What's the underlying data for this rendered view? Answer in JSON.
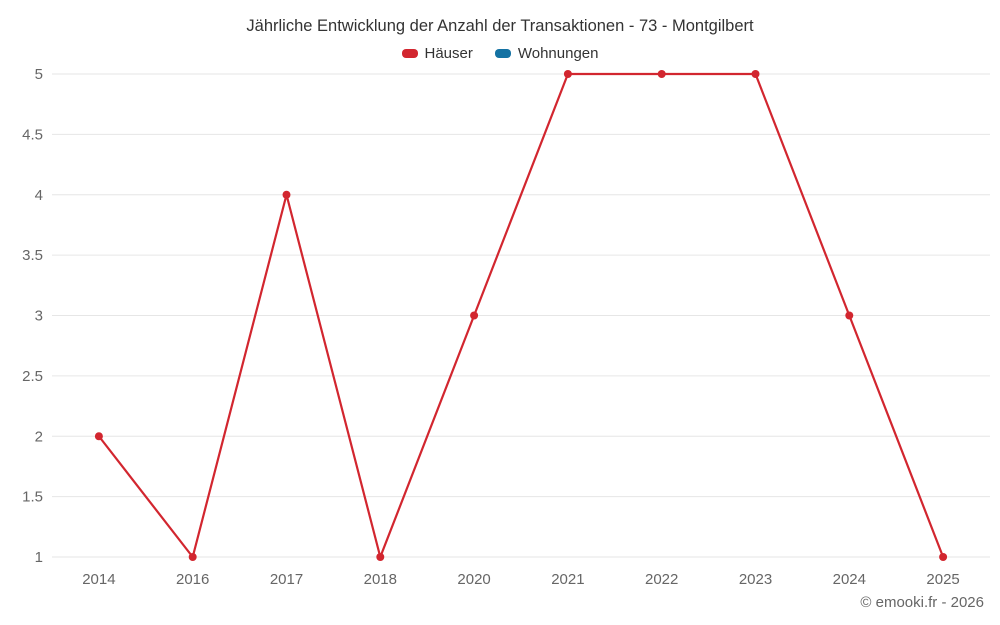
{
  "header": {
    "title": "Jährliche Entwicklung der Anzahl der Transaktionen - 73 - Montgilbert"
  },
  "legend": {
    "items": [
      {
        "label": "Häuser",
        "color": "#d2262f"
      },
      {
        "label": "Wohnungen",
        "color": "#1472a3"
      }
    ]
  },
  "footer": {
    "copyright": "© emooki.fr - 2026"
  },
  "chart_data": {
    "type": "line",
    "title": "Jährliche Entwicklung der Anzahl der Transaktionen - 73 - Montgilbert",
    "categories": [
      "2014",
      "2016",
      "2017",
      "2018",
      "2020",
      "2021",
      "2022",
      "2023",
      "2024",
      "2025"
    ],
    "series": [
      {
        "name": "Häuser",
        "color": "#d2262f",
        "values": [
          2,
          1,
          4,
          1,
          3,
          5,
          5,
          5,
          3,
          1
        ]
      },
      {
        "name": "Wohnungen",
        "color": "#1472a3",
        "values": []
      }
    ],
    "xlabel": "",
    "ylabel": "",
    "ylim": [
      1,
      5
    ],
    "ytick_step": 0.5,
    "grid": true,
    "grid_color": "#e6e6e6",
    "axis_label_color": "#666666",
    "legend_position": "top"
  }
}
